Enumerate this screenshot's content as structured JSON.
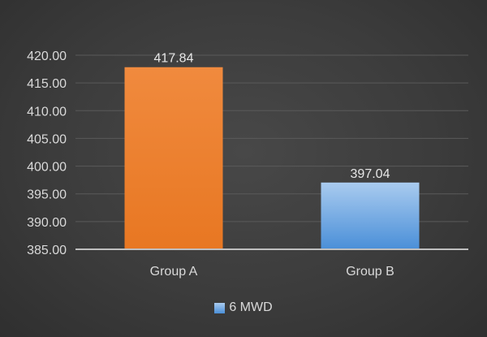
{
  "chart_data": {
    "type": "bar",
    "categories": [
      "Group A",
      "Group B"
    ],
    "series": [
      {
        "name": "6 MWD",
        "values": [
          417.84,
          397.04
        ],
        "data_labels": [
          "417.84",
          "397.04"
        ],
        "colors": [
          "#ed7d31",
          "#5b9bd5"
        ]
      }
    ],
    "y_ticks": [
      "385.00",
      "390.00",
      "395.00",
      "400.00",
      "405.00",
      "410.00",
      "415.00",
      "420.00"
    ],
    "ylim": [
      385,
      420
    ],
    "grid": true,
    "legend_position": "bottom",
    "background_color": "#3c3c3c",
    "gridline_color": "#5a5a5a",
    "text_color": "#d9d9d9"
  },
  "legend": {
    "label": "6 MWD"
  }
}
